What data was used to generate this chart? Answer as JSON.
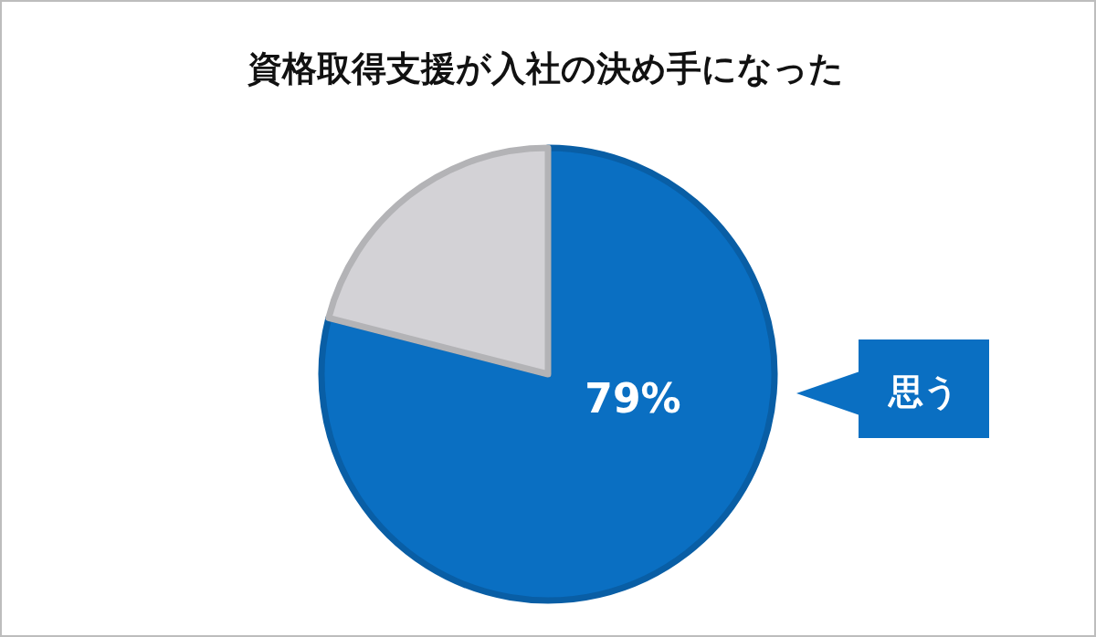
{
  "chart_data": {
    "type": "pie",
    "title": "資格取得支援が入社の決め手になった",
    "categories": [
      "思う",
      null
    ],
    "values": [
      79,
      21
    ],
    "colors": [
      "#0a6fc2",
      "#d3d2d6"
    ],
    "value_labels": [
      "79%",
      null
    ]
  }
}
